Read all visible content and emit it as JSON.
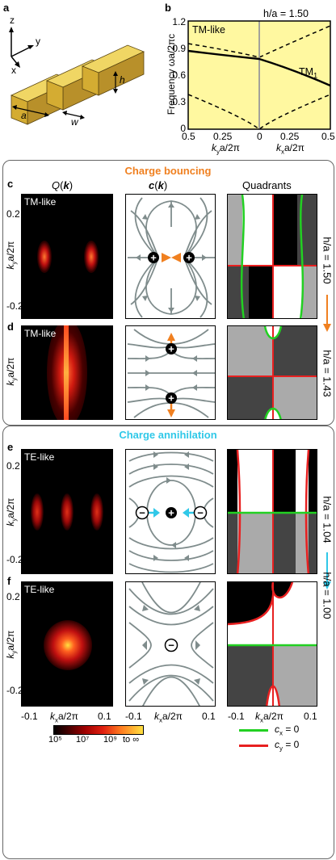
{
  "panels": {
    "a": "a",
    "b": "b",
    "c": "c",
    "d": "d",
    "e": "e",
    "f": "f"
  },
  "panel_a": {
    "axis_z": "z",
    "axis_y": "y",
    "axis_x": "x",
    "dim_a": "a",
    "dim_w": "w",
    "dim_h": "h"
  },
  "panel_b": {
    "ratio": "h/a = 1.50",
    "region_label": "TM-like",
    "mode_label": "TM",
    "mode_sub": "1",
    "ylabel": "Frequency ωa/2πc",
    "yticks": [
      "0",
      "0.3",
      "0.6",
      "0.9",
      "1.2"
    ],
    "xticks": [
      "0.5",
      "0.25",
      "0",
      "0.25",
      "0.5"
    ],
    "xlabel_left": "k",
    "xlabel_left_sub": "y",
    "xlabel_left_rest": "a/2π",
    "xlabel_right": "k",
    "xlabel_right_sub": "x",
    "xlabel_right_rest": "a/2π"
  },
  "chart_data": {
    "type": "line",
    "xlim": [
      -0.5,
      0.5
    ],
    "ylim": [
      0,
      1.2
    ],
    "x_label_left": "kya/2π",
    "x_label_right": "kxa/2π",
    "ylabel": "Frequency ωa/2πc",
    "series": [
      {
        "name": "TM1",
        "x": [
          -0.5,
          -0.25,
          0,
          0.25,
          0.5
        ],
        "y": [
          0.87,
          0.82,
          0.79,
          0.62,
          0.47
        ]
      }
    ],
    "light_cone": {
      "x": [
        -0.5,
        0,
        0.5
      ],
      "y_low": [
        0.42,
        0,
        0.42
      ],
      "y_high": [
        0.95,
        0.8,
        1.14
      ]
    }
  },
  "section_titles": {
    "bouncing": "Charge bouncing",
    "annihilation": "Charge annihilation"
  },
  "column_headers": {
    "q": "Q(k)",
    "c": "c(k)",
    "quad": "Quadrants"
  },
  "mode_tags": {
    "c": "TM-like",
    "d": "TM-like",
    "e": "TE-like",
    "f": "TE-like"
  },
  "ratios": {
    "c": "h/a = 1.50",
    "d": "h/a = 1.43",
    "e": "h/a = 1.04",
    "f": "h/a = 1.00"
  },
  "y_ticks": {
    "top": "0.2",
    "bottom": "-0.2"
  },
  "ky_label": "k",
  "ky_sub": "y",
  "ky_rest": "a/2π",
  "x_ticks": {
    "left": "-0.1",
    "right": "0.1"
  },
  "kx_label": "k",
  "kx_sub": "x",
  "kx_rest": "a/2π",
  "colorbar": {
    "ticks": [
      "10⁵",
      "10⁷",
      "10⁹",
      "to ∞"
    ]
  },
  "legend": {
    "cx": "c",
    "cx_sub": "x",
    "cx_rest": " = 0",
    "cx_color": "#22d022",
    "cy": "c",
    "cy_sub": "y",
    "cy_rest": " = 0",
    "cy_color": "#e82020"
  },
  "charges": {
    "plus": "+",
    "minus": "−"
  },
  "colors": {
    "orange": "#f08020",
    "cyan": "#30c8e8",
    "stream": "#7f8c8c",
    "fill": "#fff8a0"
  }
}
